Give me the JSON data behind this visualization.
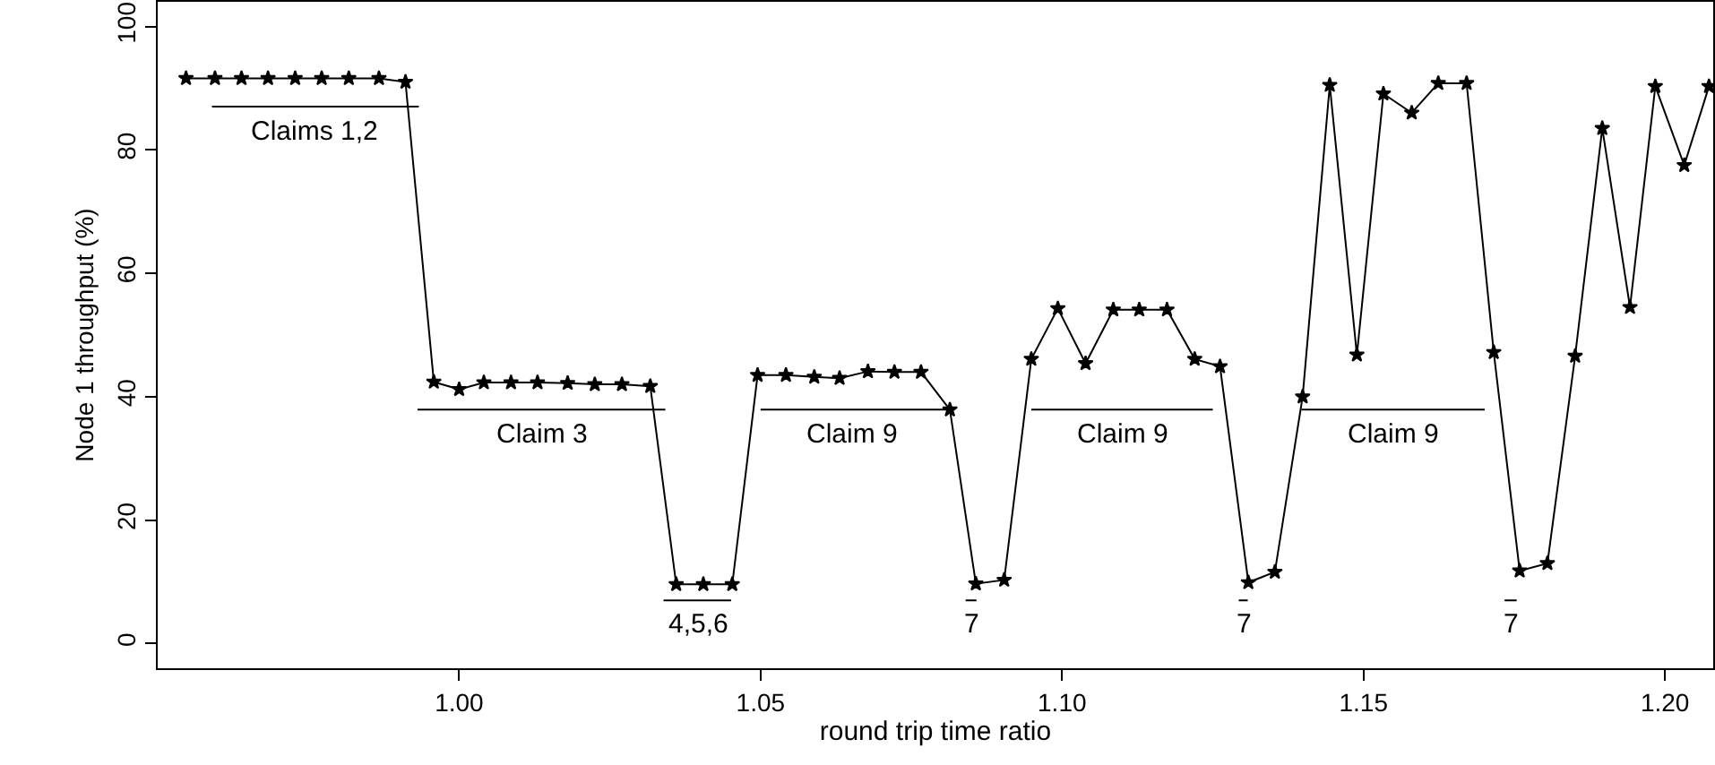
{
  "chart_data": {
    "type": "line",
    "xlabel": "round trip time ratio",
    "ylabel": "Node 1 throughput (%)",
    "xlim": [
      0.95,
      1.208
    ],
    "ylim": [
      -4,
      104
    ],
    "xticks": [
      {
        "value": 1.0,
        "label": "1.00"
      },
      {
        "value": 1.05,
        "label": "1.05"
      },
      {
        "value": 1.1,
        "label": "1.10"
      },
      {
        "value": 1.15,
        "label": "1.15"
      },
      {
        "value": 1.2,
        "label": "1.20"
      }
    ],
    "yticks": [
      0,
      20,
      40,
      60,
      80,
      100
    ],
    "marker": "star",
    "line_style": "solid",
    "series": [
      {
        "color": "#000000",
        "x": [
          0.9547,
          0.9595,
          0.9639,
          0.9683,
          0.9728,
          0.9772,
          0.9817,
          0.9867,
          0.9911,
          0.9958,
          1.0,
          1.0041,
          1.0086,
          1.013,
          1.018,
          1.0225,
          1.027,
          1.0317,
          1.036,
          1.0405,
          1.0453,
          1.0495,
          1.0542,
          1.0589,
          1.0631,
          1.0678,
          1.0722,
          1.0766,
          1.0814,
          1.0857,
          1.0904,
          1.0949,
          1.0993,
          1.1039,
          1.1085,
          1.1128,
          1.1174,
          1.122,
          1.1262,
          1.1309,
          1.1353,
          1.1399,
          1.1444,
          1.1489,
          1.1533,
          1.158,
          1.1624,
          1.1671,
          1.1716,
          1.1759,
          1.1805,
          1.1851,
          1.1896,
          1.1942,
          1.1984,
          1.2032,
          1.2073
        ],
        "values": [
          91.6,
          91.6,
          91.6,
          91.6,
          91.6,
          91.6,
          91.6,
          91.6,
          91.0,
          42.4,
          41.2,
          42.3,
          42.3,
          42.3,
          42.2,
          42.0,
          42.0,
          41.7,
          9.6,
          9.6,
          9.6,
          43.5,
          43.5,
          43.2,
          43.0,
          44.1,
          44.0,
          44.0,
          37.9,
          9.7,
          10.3,
          46.1,
          54.3,
          45.4,
          54.1,
          54.1,
          54.1,
          46.1,
          44.9,
          9.9,
          11.6,
          40.0,
          90.5,
          46.8,
          89.1,
          86.0,
          90.8,
          90.8,
          47.2,
          11.8,
          13.0,
          46.6,
          83.5,
          54.5,
          90.3,
          77.5,
          90.3
        ]
      },
      {
        "color": "#000000",
        "marker": "none",
        "x": [
          0.959,
          0.9933
        ],
        "values": [
          87.0,
          87.0
        ]
      },
      {
        "color": "#000000",
        "marker": "none",
        "x": [
          0.9931,
          1.0342
        ],
        "values": [
          37.9,
          37.9
        ]
      },
      {
        "color": "#000000",
        "marker": "none",
        "x": [
          1.0339,
          1.0451
        ],
        "values": [
          7.0,
          7.0
        ]
      },
      {
        "color": "#000000",
        "marker": "none",
        "x": [
          1.05,
          1.0806
        ],
        "values": [
          37.9,
          37.9
        ]
      },
      {
        "color": "#000000",
        "marker": "none",
        "x": [
          1.084,
          1.0858
        ],
        "values": [
          7.0,
          7.0
        ]
      },
      {
        "color": "#000000",
        "marker": "none",
        "x": [
          1.0949,
          1.125
        ],
        "values": [
          37.9,
          37.9
        ]
      },
      {
        "color": "#000000",
        "marker": "none",
        "x": [
          1.1293,
          1.1308
        ],
        "values": [
          7.0,
          7.0
        ]
      },
      {
        "color": "#000000",
        "marker": "none",
        "x": [
          1.1397,
          1.1701
        ],
        "values": [
          37.9,
          37.9
        ]
      },
      {
        "color": "#000000",
        "marker": "none",
        "x": [
          1.1734,
          1.1754
        ],
        "values": [
          7.0,
          7.0
        ]
      }
    ],
    "annotations": [
      {
        "text": "Claims 1,2",
        "x": 0.976,
        "y": 87.0
      },
      {
        "text": "Claim 3",
        "x": 1.0137,
        "y": 37.9
      },
      {
        "text": "4,5,6",
        "x": 1.0395,
        "y": 7.0
      },
      {
        "text": "Claim 9",
        "x": 1.0653,
        "y": 37.9
      },
      {
        "text": "7",
        "x": 1.0849,
        "y": 7.0
      },
      {
        "text": "Claim 9",
        "x": 1.11,
        "y": 37.9
      },
      {
        "text": "7",
        "x": 1.13,
        "y": 7.0
      },
      {
        "text": "Claim 9",
        "x": 1.1549,
        "y": 37.9
      },
      {
        "text": "7",
        "x": 1.1744,
        "y": 7.0
      }
    ]
  }
}
